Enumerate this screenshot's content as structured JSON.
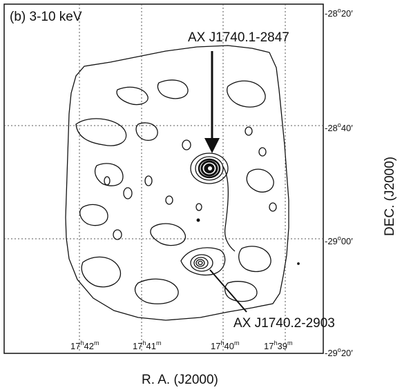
{
  "figure": {
    "panel_label": "(b) 3-10 keV",
    "sources": [
      {
        "name": "AX J1740.1-2847"
      },
      {
        "name": "AX J1740.2-2903"
      }
    ],
    "xaxis": {
      "title": "R. A. (J2000)",
      "ticks": [
        {
          "h": "17",
          "m": "42"
        },
        {
          "h": "17",
          "m": "41"
        },
        {
          "h": "17",
          "m": "40"
        },
        {
          "h": "17",
          "m": "39"
        }
      ]
    },
    "yaxis": {
      "title": "DEC. (J2000)",
      "ticks": [
        {
          "deg": "-28",
          "min": "20"
        },
        {
          "deg": "-28",
          "min": "40"
        },
        {
          "deg": "-29",
          "min": "00"
        },
        {
          "deg": "-29",
          "min": "20"
        }
      ]
    },
    "colors": {
      "ink": "#111111",
      "grid": "#555555",
      "background": "#ffffff"
    }
  }
}
